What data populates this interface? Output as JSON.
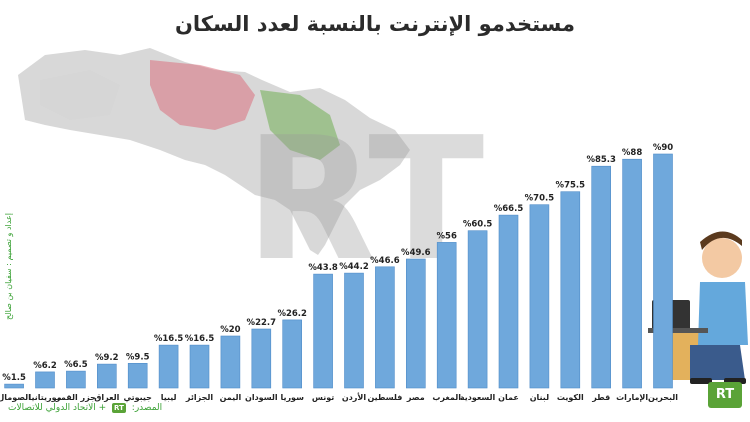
{
  "title": "مستخدمو الإنترنت بالنسبة لعدد السكان",
  "credit": "إعداد و تصميم : سفيان بن صالح",
  "source": {
    "prefix": "المصدر:",
    "plus": "+",
    "org": "الاتحاد الدولي للاتصالات",
    "badge": "RT"
  },
  "logo_text": "RT",
  "colors": {
    "bar": "#6fa8dc",
    "bar_edge": "#4f8cc9",
    "watermark": "#bdbdbd",
    "accent_green": "#5aa337"
  },
  "chart_data": {
    "type": "bar",
    "title": "مستخدمو الإنترنت بالنسبة لعدد السكان",
    "unit_prefix": "%",
    "categories": [
      "البحرين",
      "الإمارات",
      "قطر",
      "الكويت",
      "لبنان",
      "عمان",
      "السعودية",
      "المغرب",
      "مصر",
      "فلسطين",
      "الأردن",
      "تونس",
      "سوريا",
      "السودان",
      "اليمن",
      "الجزائر",
      "ليبيا",
      "جيبوتي",
      "العراق",
      "جزر القمر",
      "موريتانيا",
      "الصومال"
    ],
    "values": [
      90,
      88,
      85.3,
      75.5,
      70.5,
      66.5,
      60.5,
      56,
      49.6,
      46.6,
      44.2,
      43.8,
      26.2,
      22.7,
      20,
      16.5,
      16.5,
      9.5,
      9.2,
      6.5,
      6.2,
      1.5
    ],
    "labels": [
      "%90",
      "%88",
      "%85.3",
      "%75.5",
      "%70.5",
      "%66.5",
      "%60.5",
      "%56",
      "%49.6",
      "%46.6",
      "%44.2",
      "%43.8",
      "%26.2",
      "%22.7",
      "%20",
      "%16.5",
      "%16.5",
      "%9.5",
      "%9.2",
      "%6.5",
      "%6.2",
      "%1.5"
    ],
    "ylim": [
      0,
      100
    ],
    "grid": false,
    "legend": "none",
    "xlabel": "",
    "ylabel": ""
  }
}
